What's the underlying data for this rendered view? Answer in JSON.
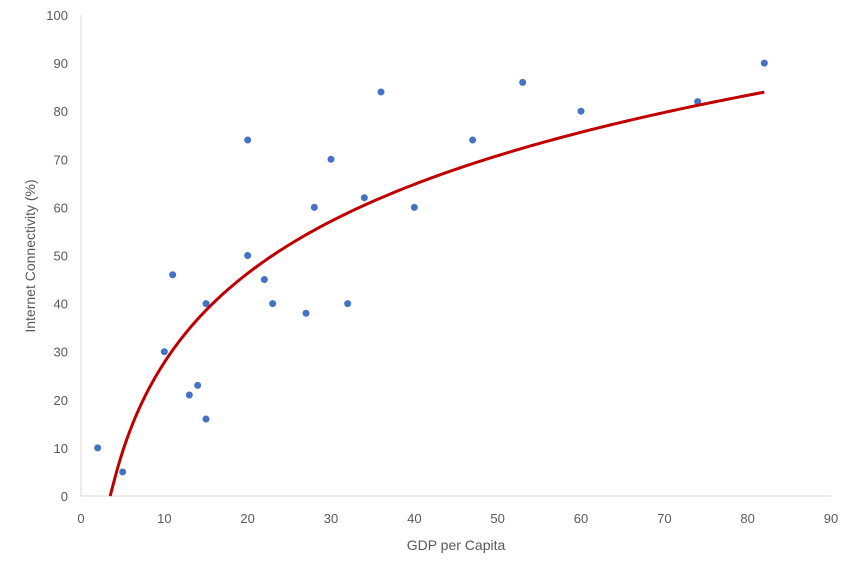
{
  "colors": {
    "points": "#4472C4",
    "trendline": "#C00000",
    "axis": "#D9D9D9",
    "text": "#595959"
  },
  "chart_data": {
    "type": "scatter",
    "title": "",
    "xlabel": "GDP per Capita",
    "ylabel": "Internet Connectivity (%)",
    "xlim": [
      0,
      90
    ],
    "ylim": [
      0,
      100
    ],
    "x_ticks": [
      0,
      10,
      20,
      30,
      40,
      50,
      60,
      70,
      80,
      90
    ],
    "y_ticks": [
      0,
      10,
      20,
      30,
      40,
      50,
      60,
      70,
      80,
      90,
      100
    ],
    "grid": false,
    "legend": "none",
    "series": [
      {
        "marker": "circle",
        "points": [
          {
            "x": 2,
            "y": 10
          },
          {
            "x": 5,
            "y": 5
          },
          {
            "x": 10,
            "y": 30
          },
          {
            "x": 11,
            "y": 46
          },
          {
            "x": 13,
            "y": 21
          },
          {
            "x": 14,
            "y": 23
          },
          {
            "x": 15,
            "y": 16
          },
          {
            "x": 15,
            "y": 40
          },
          {
            "x": 20,
            "y": 74
          },
          {
            "x": 20,
            "y": 50
          },
          {
            "x": 22,
            "y": 45
          },
          {
            "x": 23,
            "y": 40
          },
          {
            "x": 27,
            "y": 38
          },
          {
            "x": 28,
            "y": 60
          },
          {
            "x": 30,
            "y": 70
          },
          {
            "x": 32,
            "y": 40
          },
          {
            "x": 34,
            "y": 62
          },
          {
            "x": 36,
            "y": 84
          },
          {
            "x": 40,
            "y": 60
          },
          {
            "x": 47,
            "y": 74
          },
          {
            "x": 53,
            "y": 86
          },
          {
            "x": 60,
            "y": 80
          },
          {
            "x": 74,
            "y": 82
          },
          {
            "x": 82,
            "y": 90
          }
        ]
      }
    ],
    "trendline": {
      "type": "logarithmic",
      "equation": "y = a*ln(x) + b",
      "a": 26.7,
      "b": -33.7,
      "x_range": [
        3.5,
        82
      ]
    }
  }
}
